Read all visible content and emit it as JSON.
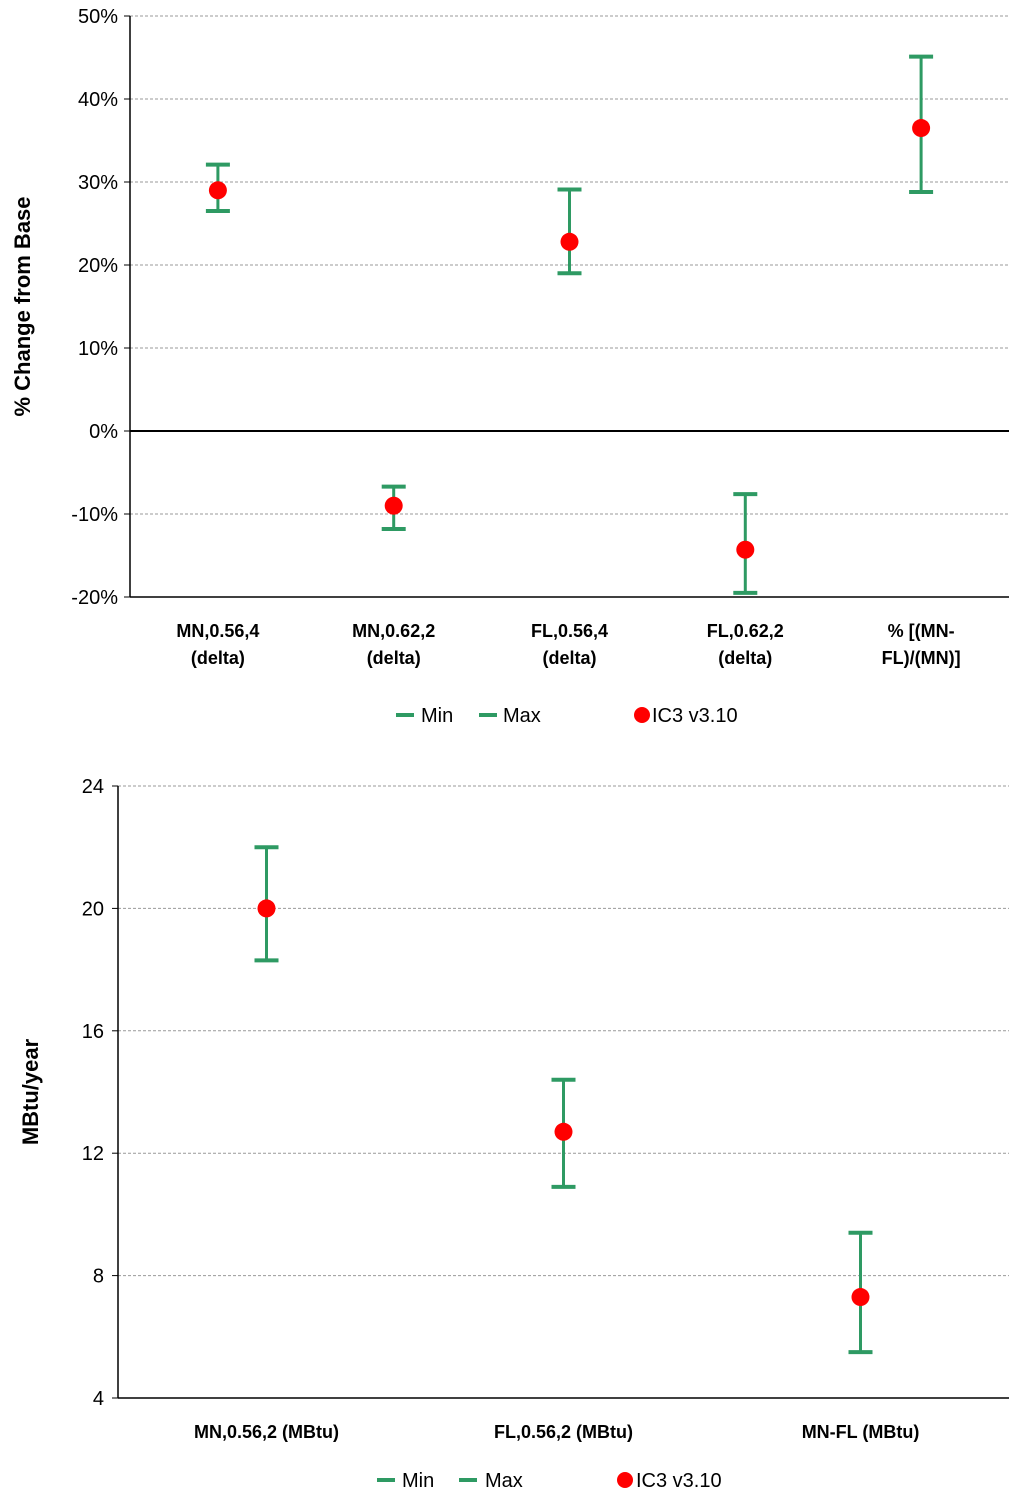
{
  "chart_data": [
    {
      "type": "errorbar",
      "ylabel": "% Change from Base",
      "ylim": [
        -20,
        50
      ],
      "yticks": [
        -20,
        -10,
        0,
        10,
        20,
        30,
        40,
        50
      ],
      "ytick_labels": [
        "-20%",
        "-10%",
        "0%",
        "10%",
        "20%",
        "30%",
        "40%",
        "50%"
      ],
      "grid": true,
      "categories": [
        [
          "MN,0.56,4",
          "(delta)"
        ],
        [
          "MN,0.62,2",
          "(delta)"
        ],
        [
          "FL,0.56,4",
          "(delta)"
        ],
        [
          "FL,0.62,2",
          "(delta)"
        ],
        [
          "% [(MN-",
          "FL)/(MN)]"
        ]
      ],
      "series": [
        {
          "name": "Min",
          "values": [
            26.5,
            -11.8,
            19,
            -19.5,
            28.8
          ]
        },
        {
          "name": "Max",
          "values": [
            32.1,
            -6.7,
            29.1,
            -7.6,
            45.1
          ]
        },
        {
          "name": "IC3 v3.10",
          "values": [
            29.0,
            -9.0,
            22.8,
            -14.3,
            36.5
          ]
        }
      ],
      "legend": [
        "Min",
        "Max",
        "IC3 v3.10"
      ],
      "legend_position": "bottom",
      "colors": {
        "range": "#2e9a63",
        "point": "#ff0000"
      }
    },
    {
      "type": "errorbar",
      "ylabel": "MBtu/year",
      "ylim": [
        4,
        24
      ],
      "yticks": [
        4,
        8,
        12,
        16,
        20,
        24
      ],
      "ytick_labels": [
        "4",
        "8",
        "12",
        "16",
        "20",
        "24"
      ],
      "grid": true,
      "categories": [
        [
          "MN,0.56,2 (MBtu)"
        ],
        [
          "FL,0.56,2 (MBtu)"
        ],
        [
          "MN-FL (MBtu)"
        ]
      ],
      "series": [
        {
          "name": "Min",
          "values": [
            18.3,
            10.9,
            5.5
          ]
        },
        {
          "name": "Max",
          "values": [
            22.0,
            14.4,
            9.4
          ]
        },
        {
          "name": "IC3 v3.10",
          "values": [
            20.0,
            12.7,
            7.3
          ]
        }
      ],
      "legend": [
        "Min",
        "Max",
        "IC3 v3.10"
      ],
      "legend_position": "bottom",
      "colors": {
        "range": "#2e9a63",
        "point": "#ff0000"
      }
    }
  ]
}
